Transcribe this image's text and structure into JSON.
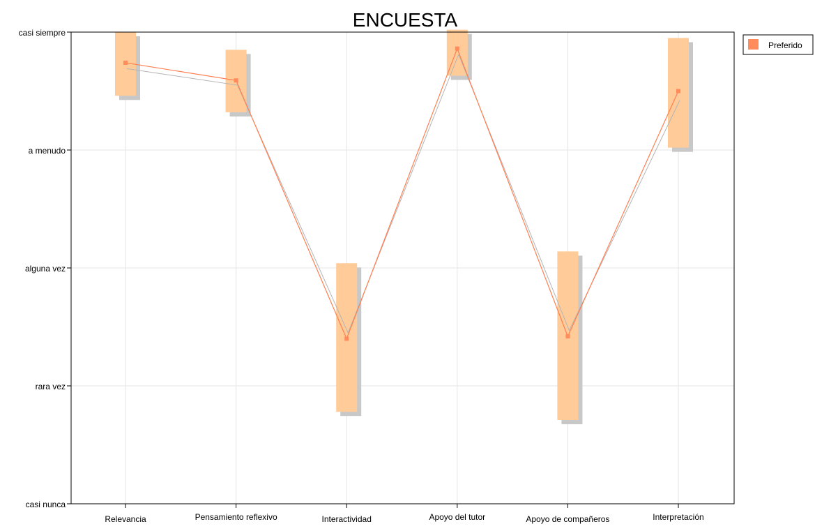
{
  "chart_data": {
    "type": "line",
    "title": "ENCUESTA",
    "xlabel": "",
    "ylabel": "",
    "categories": [
      "Relevancia",
      "Pensamiento reflexivo",
      "Interactividad",
      "Apoyo del tutor",
      "Apoyo de compañeros",
      "Interpretación"
    ],
    "y_tick_labels": [
      "casi nunca",
      "rara vez",
      "alguna vez",
      "a menudo",
      "casi siempre"
    ],
    "ylim": [
      1,
      5
    ],
    "grid": true,
    "legend_position": "top-right",
    "series": [
      {
        "name": "Preferido",
        "color": "#ff8c5a",
        "band_color": "#ffcc99",
        "shadow_color": "#c8c8c8",
        "mean_line_color": "#ff7f50",
        "values": [
          4.74,
          4.59,
          2.4,
          4.86,
          2.42,
          4.5
        ],
        "range_low": [
          4.46,
          4.32,
          1.78,
          4.63,
          1.71,
          4.02
        ],
        "range_high": [
          5.0,
          4.85,
          3.04,
          5.02,
          3.14,
          4.95
        ]
      }
    ],
    "shadow_values": [
      4.69,
      4.55,
      2.45,
      4.81,
      2.47,
      4.42
    ]
  }
}
